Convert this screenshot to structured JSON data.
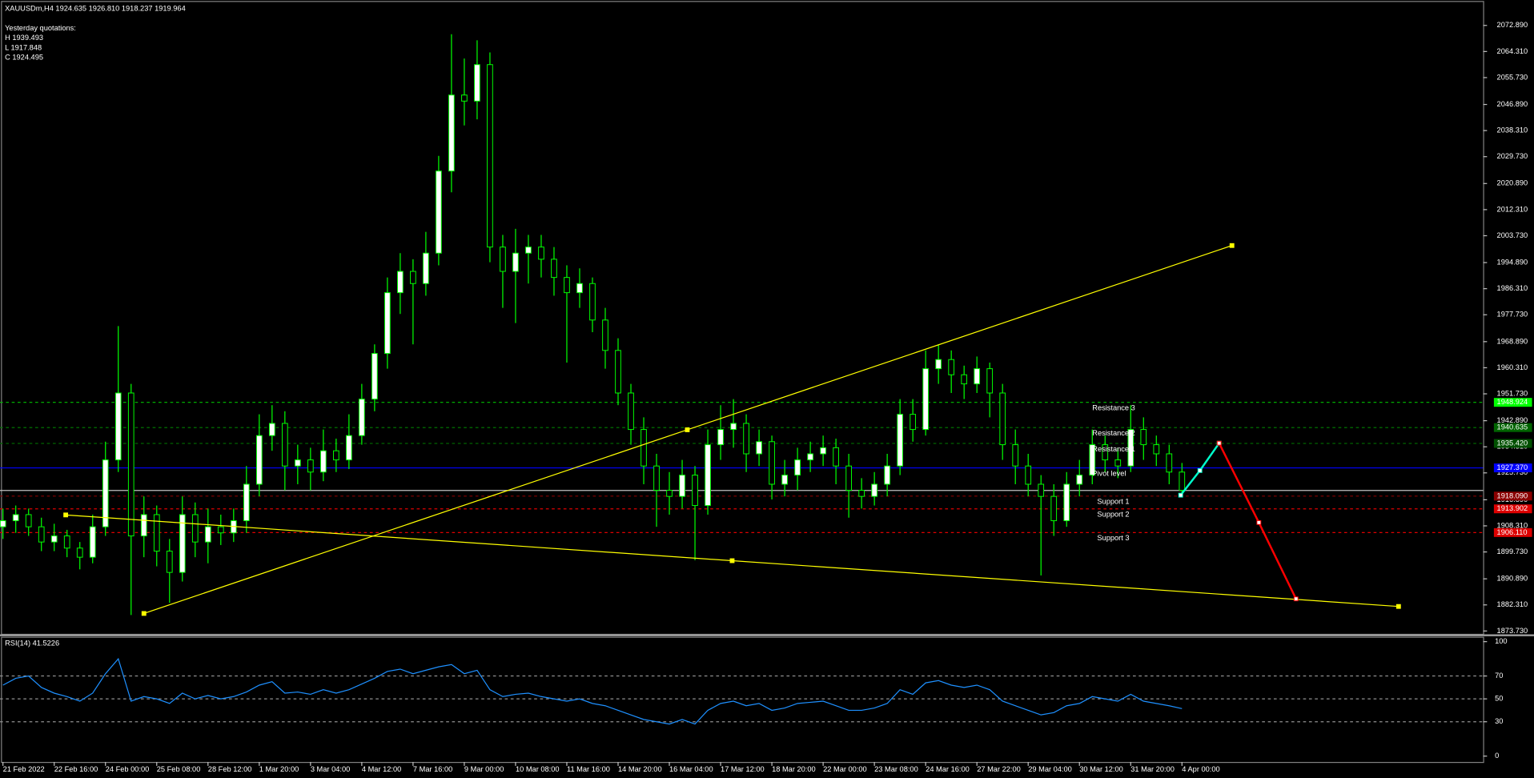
{
  "chart_data": {
    "type": "candlestick",
    "title": "XAUUSDm,H4  1924.635 1926.810 1918.237 1919.964",
    "info": [
      "Yesterday quotations:",
      "H 1939.493",
      "L 1917.848",
      "C 1924.495"
    ],
    "colors": {
      "wick": "#00ff00",
      "up": "#ffffff",
      "down": "#000000",
      "background": "#000000",
      "axis": "#c0c0c0"
    },
    "xlim": [
      -0.23,
      115.5
    ],
    "ylim": [
      1872.8,
      2081.25
    ],
    "yticks": [
      {
        "value": 2072.89,
        "label": "2072.890"
      },
      {
        "value": 2064.31,
        "label": "2064.310"
      },
      {
        "value": 2055.73,
        "label": "2055.730"
      },
      {
        "value": 2046.89,
        "label": "2046.890"
      },
      {
        "value": 2038.31,
        "label": "2038.310"
      },
      {
        "value": 2029.73,
        "label": "2029.730"
      },
      {
        "value": 2020.89,
        "label": "2020.890"
      },
      {
        "value": 2012.31,
        "label": "2012.310"
      },
      {
        "value": 2003.73,
        "label": "2003.730"
      },
      {
        "value": 1994.89,
        "label": "1994.890"
      },
      {
        "value": 1986.31,
        "label": "1986.310"
      },
      {
        "value": 1977.73,
        "label": "1977.730"
      },
      {
        "value": 1968.89,
        "label": "1968.890"
      },
      {
        "value": 1960.31,
        "label": "1960.310"
      },
      {
        "value": 1951.73,
        "label": "1951.730"
      },
      {
        "value": 1942.89,
        "label": "1942.890"
      },
      {
        "value": 1934.31,
        "label": "1934.310"
      },
      {
        "value": 1925.73,
        "label": "1925.730"
      },
      {
        "value": 1916.89,
        "label": "1916.890"
      },
      {
        "value": 1908.31,
        "label": "1908.310"
      },
      {
        "value": 1899.73,
        "label": "1899.730"
      },
      {
        "value": 1890.89,
        "label": "1890.890"
      },
      {
        "value": 1882.31,
        "label": "1882.310"
      },
      {
        "value": 1873.73,
        "label": "1873.730"
      }
    ],
    "xticks": [
      {
        "value": 0,
        "label": "21 Feb 2022"
      },
      {
        "value": 4,
        "label": "22 Feb 16:00"
      },
      {
        "value": 8,
        "label": "24 Feb 00:00"
      },
      {
        "value": 12,
        "label": "25 Feb 08:00"
      },
      {
        "value": 16,
        "label": "28 Feb 12:00"
      },
      {
        "value": 20,
        "label": "1 Mar 20:00"
      },
      {
        "value": 24,
        "label": "3 Mar 04:00"
      },
      {
        "value": 28,
        "label": "4 Mar 12:00"
      },
      {
        "value": 32,
        "label": "7 Mar 16:00"
      },
      {
        "value": 36,
        "label": "9 Mar 00:00"
      },
      {
        "value": 40,
        "label": "10 Mar 08:00"
      },
      {
        "value": 44,
        "label": "11 Mar 16:00"
      },
      {
        "value": 48,
        "label": "14 Mar 20:00"
      },
      {
        "value": 52,
        "label": "16 Mar 04:00"
      },
      {
        "value": 56,
        "label": "17 Mar 12:00"
      },
      {
        "value": 60,
        "label": "18 Mar 20:00"
      },
      {
        "value": 64,
        "label": "22 Mar 00:00"
      },
      {
        "value": 68,
        "label": "23 Mar 08:00"
      },
      {
        "value": 72,
        "label": "24 Mar 16:00"
      },
      {
        "value": 76,
        "label": "27 Mar 22:00"
      },
      {
        "value": 80,
        "label": "29 Mar 04:00"
      },
      {
        "value": 84,
        "label": "30 Mar 12:00"
      },
      {
        "value": 88,
        "label": "31 Mar 20:00"
      },
      {
        "value": 92,
        "label": "4 Apr 00:00"
      }
    ],
    "ohlc": [
      [
        1908,
        1914,
        1904,
        1910
      ],
      [
        1910,
        1915,
        1906,
        1912
      ],
      [
        1912,
        1914,
        1905,
        1908
      ],
      [
        1908,
        1911,
        1900,
        1903
      ],
      [
        1903,
        1909,
        1900,
        1905
      ],
      [
        1905,
        1907,
        1898,
        1901
      ],
      [
        1901,
        1903,
        1894,
        1898
      ],
      [
        1898,
        1912,
        1896,
        1908
      ],
      [
        1908,
        1936,
        1905,
        1930
      ],
      [
        1930,
        1974,
        1926,
        1952
      ],
      [
        1952,
        1955,
        1879,
        1905
      ],
      [
        1905,
        1918,
        1898,
        1912
      ],
      [
        1912,
        1915,
        1895,
        1900
      ],
      [
        1900,
        1904,
        1883,
        1893
      ],
      [
        1893,
        1918,
        1890,
        1912
      ],
      [
        1912,
        1916,
        1898,
        1903
      ],
      [
        1903,
        1914,
        1896,
        1908
      ],
      [
        1908,
        1912,
        1902,
        1906
      ],
      [
        1906,
        1914,
        1903,
        1910
      ],
      [
        1910,
        1928,
        1906,
        1922
      ],
      [
        1922,
        1945,
        1918,
        1938
      ],
      [
        1938,
        1948,
        1933,
        1942
      ],
      [
        1942,
        1946,
        1920,
        1928
      ],
      [
        1928,
        1935,
        1922,
        1930
      ],
      [
        1930,
        1934,
        1920,
        1926
      ],
      [
        1926,
        1940,
        1923,
        1933
      ],
      [
        1933,
        1937,
        1926,
        1930
      ],
      [
        1930,
        1945,
        1927,
        1938
      ],
      [
        1938,
        1955,
        1935,
        1950
      ],
      [
        1950,
        1968,
        1946,
        1965
      ],
      [
        1965,
        1990,
        1960,
        1985
      ],
      [
        1985,
        1998,
        1978,
        1992
      ],
      [
        1992,
        1996,
        1968,
        1988
      ],
      [
        1988,
        2005,
        1984,
        1998
      ],
      [
        1998,
        2030,
        1994,
        2025
      ],
      [
        2025,
        2070,
        2018,
        2050
      ],
      [
        2050,
        2062,
        2040,
        2048
      ],
      [
        2048,
        2068,
        2042,
        2060
      ],
      [
        2060,
        2064,
        1995,
        2000
      ],
      [
        2000,
        2004,
        1980,
        1992
      ],
      [
        1992,
        2006,
        1975,
        1998
      ],
      [
        1998,
        2004,
        1988,
        2000
      ],
      [
        2000,
        2004,
        1990,
        1996
      ],
      [
        1996,
        2000,
        1984,
        1990
      ],
      [
        1990,
        1994,
        1962,
        1985
      ],
      [
        1985,
        1993,
        1980,
        1988
      ],
      [
        1988,
        1990,
        1972,
        1976
      ],
      [
        1976,
        1980,
        1960,
        1966
      ],
      [
        1966,
        1970,
        1948,
        1952
      ],
      [
        1952,
        1955,
        1935,
        1940
      ],
      [
        1940,
        1944,
        1922,
        1928
      ],
      [
        1928,
        1932,
        1908,
        1920
      ],
      [
        1920,
        1926,
        1912,
        1918
      ],
      [
        1918,
        1930,
        1914,
        1925
      ],
      [
        1925,
        1928,
        1897,
        1915
      ],
      [
        1915,
        1940,
        1912,
        1935
      ],
      [
        1935,
        1948,
        1930,
        1940
      ],
      [
        1940,
        1950,
        1934,
        1942
      ],
      [
        1942,
        1945,
        1926,
        1932
      ],
      [
        1932,
        1940,
        1928,
        1936
      ],
      [
        1936,
        1938,
        1917,
        1922
      ],
      [
        1922,
        1930,
        1918,
        1925
      ],
      [
        1925,
        1934,
        1920,
        1930
      ],
      [
        1930,
        1936,
        1926,
        1932
      ],
      [
        1932,
        1938,
        1928,
        1934
      ],
      [
        1934,
        1937,
        1922,
        1928
      ],
      [
        1928,
        1932,
        1911,
        1920
      ],
      [
        1920,
        1924,
        1914,
        1918
      ],
      [
        1918,
        1926,
        1915,
        1922
      ],
      [
        1922,
        1932,
        1918,
        1928
      ],
      [
        1928,
        1950,
        1925,
        1945
      ],
      [
        1945,
        1950,
        1936,
        1940
      ],
      [
        1940,
        1966,
        1938,
        1960
      ],
      [
        1960,
        1968,
        1955,
        1963
      ],
      [
        1963,
        1966,
        1952,
        1958
      ],
      [
        1958,
        1961,
        1950,
        1955
      ],
      [
        1955,
        1964,
        1952,
        1960
      ],
      [
        1960,
        1962,
        1944,
        1952
      ],
      [
        1952,
        1955,
        1930,
        1935
      ],
      [
        1935,
        1940,
        1922,
        1928
      ],
      [
        1928,
        1932,
        1918,
        1922
      ],
      [
        1922,
        1925,
        1892,
        1918
      ],
      [
        1918,
        1922,
        1905,
        1910
      ],
      [
        1910,
        1926,
        1908,
        1922
      ],
      [
        1922,
        1930,
        1918,
        1925
      ],
      [
        1925,
        1940,
        1922,
        1935
      ],
      [
        1935,
        1938,
        1926,
        1930
      ],
      [
        1930,
        1934,
        1924,
        1928
      ],
      [
        1928,
        1948,
        1926,
        1940
      ],
      [
        1940,
        1944,
        1930,
        1935
      ],
      [
        1935,
        1938,
        1928,
        1932
      ],
      [
        1932,
        1935,
        1922,
        1926
      ],
      [
        1926,
        1929,
        1918,
        1920
      ]
    ],
    "price_line": 1919.964,
    "levels": [
      {
        "name": "Resistance 3",
        "value": 1948.924,
        "label": "1948.924",
        "color": "#00c000",
        "box": "#00ff00",
        "box_text": "#004000",
        "style": "dashed"
      },
      {
        "name": "Resistance 2",
        "value": 1940.635,
        "label": "1940.635",
        "color": "#008000",
        "box": "#006400",
        "box_text": "#00c000",
        "style": "dashed"
      },
      {
        "name": "Resistance 1",
        "value": 1935.42,
        "label": "1935.420",
        "color": "#006400",
        "box": "#005000",
        "box_text": "#00a000",
        "style": "dashed"
      },
      {
        "name": "Pivot level",
        "value": 1927.37,
        "label": "1927.370",
        "color": "#0000ff",
        "box": "#0000ff",
        "box_text": "#0000a0",
        "style": "solid"
      },
      {
        "name": "Support 1",
        "value": 1918.09,
        "label": "1918.090",
        "color": "#8b0000",
        "box": "#8b0000",
        "box_text": "#ff4040",
        "style": "dashed"
      },
      {
        "name": "Support 2",
        "value": 1913.902,
        "label": "1913.902",
        "color": "#dd0000",
        "box": "#dd0000",
        "box_text": "#ffc0c0",
        "style": "dashed"
      },
      {
        "name": "Support 3",
        "value": 1906.11,
        "label": "1906.110",
        "color": "#dd0000",
        "box": "#dd0000",
        "box_text": "#ffc0c0",
        "style": "dashed"
      }
    ],
    "trendlines": [
      {
        "x": [
          4.9,
          56.9,
          108.9
        ],
        "y": [
          1911.9,
          1896.85,
          1881.8
        ],
        "color": "#ffff00"
      },
      {
        "x": [
          11,
          53.4,
          95.9
        ],
        "y": [
          1879.5,
          1939.9,
          2000.5
        ],
        "color": "#ffff00"
      }
    ],
    "forecast": [
      {
        "x": [
          91.9,
          93.4,
          94.9
        ],
        "y": [
          1918.4,
          1926.5,
          1935.5
        ],
        "color": "#00ffcc"
      },
      {
        "x": [
          94.9,
          98.0,
          100.9
        ],
        "y": [
          1935.5,
          1909.4,
          1884.3
        ],
        "color": "#ff0000"
      }
    ],
    "indicator": {
      "type": "line",
      "title": "RSI(14) 41.5226",
      "color": "#1e90ff",
      "ylim": [
        0,
        100
      ],
      "yticks": [
        100,
        70,
        50,
        30,
        0
      ],
      "levels": [
        70,
        50,
        30
      ],
      "values": [
        62,
        68,
        70,
        60,
        55,
        52,
        48,
        55,
        72,
        85,
        48,
        52,
        50,
        46,
        55,
        50,
        53,
        50,
        52,
        56,
        62,
        65,
        55,
        56,
        54,
        58,
        55,
        58,
        63,
        68,
        74,
        76,
        72,
        75,
        78,
        80,
        72,
        75,
        58,
        52,
        54,
        55,
        52,
        50,
        48,
        50,
        46,
        44,
        40,
        36,
        32,
        30,
        28,
        32,
        28,
        40,
        46,
        48,
        44,
        46,
        40,
        42,
        46,
        47,
        48,
        44,
        40,
        40,
        42,
        46,
        58,
        54,
        64,
        66,
        62,
        60,
        62,
        58,
        48,
        44,
        40,
        36,
        38,
        44,
        46,
        52,
        50,
        48,
        54,
        48,
        46,
        44,
        41.5
      ]
    }
  }
}
